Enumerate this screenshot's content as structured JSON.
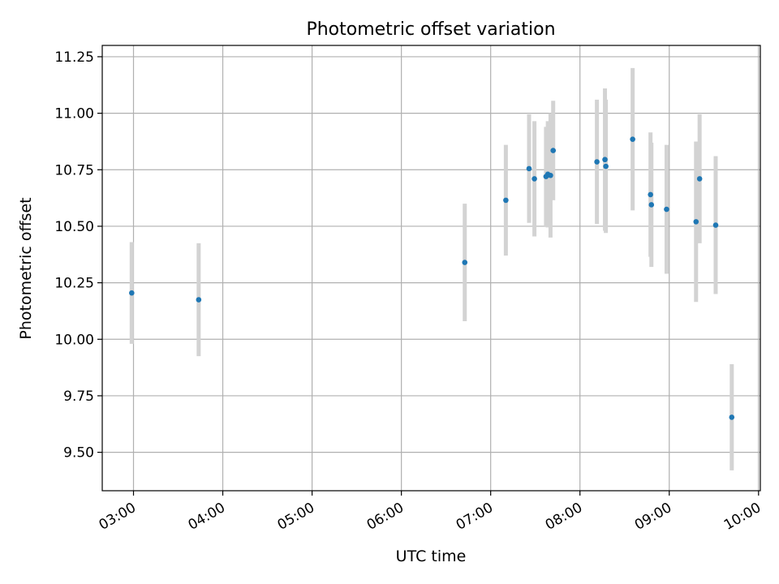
{
  "chart_data": {
    "type": "scatter",
    "title": "Photometric offset variation",
    "xlabel": "UTC time",
    "ylabel": "Photometric offset",
    "x_unit": "hours UTC",
    "xlim": [
      2.65,
      10.02
    ],
    "ylim": [
      9.33,
      11.3
    ],
    "x_ticks": [
      3,
      4,
      5,
      6,
      7,
      8,
      9,
      10
    ],
    "x_tick_labels": [
      "03:00",
      "04:00",
      "05:00",
      "06:00",
      "07:00",
      "08:00",
      "09:00",
      "10:00"
    ],
    "y_ticks": [
      9.5,
      9.75,
      10.0,
      10.25,
      10.5,
      10.75,
      11.0,
      11.25
    ],
    "y_tick_labels": [
      "9.50",
      "9.75",
      "10.00",
      "10.25",
      "10.50",
      "10.75",
      "11.00",
      "11.25"
    ],
    "grid": true,
    "legend": "none",
    "point_color": "#1f77b4",
    "errorbar_color": "#d3d3d3",
    "points": [
      {
        "x": 2.98,
        "y": 10.205,
        "err": 0.225
      },
      {
        "x": 3.73,
        "y": 10.175,
        "err": 0.25
      },
      {
        "x": 6.71,
        "y": 10.34,
        "err": 0.26
      },
      {
        "x": 7.17,
        "y": 10.615,
        "err": 0.245
      },
      {
        "x": 7.43,
        "y": 10.755,
        "err": 0.24
      },
      {
        "x": 7.49,
        "y": 10.71,
        "err": 0.255
      },
      {
        "x": 7.62,
        "y": 10.72,
        "err": 0.22
      },
      {
        "x": 7.64,
        "y": 10.73,
        "err": 0.235
      },
      {
        "x": 7.67,
        "y": 10.725,
        "err": 0.275
      },
      {
        "x": 7.7,
        "y": 10.835,
        "err": 0.22
      },
      {
        "x": 8.19,
        "y": 10.785,
        "err": 0.275
      },
      {
        "x": 8.28,
        "y": 10.795,
        "err": 0.315
      },
      {
        "x": 8.29,
        "y": 10.765,
        "err": 0.295
      },
      {
        "x": 8.59,
        "y": 10.885,
        "err": 0.315
      },
      {
        "x": 8.79,
        "y": 10.64,
        "err": 0.275
      },
      {
        "x": 8.8,
        "y": 10.595,
        "err": 0.275
      },
      {
        "x": 8.97,
        "y": 10.575,
        "err": 0.285
      },
      {
        "x": 9.3,
        "y": 10.52,
        "err": 0.355
      },
      {
        "x": 9.34,
        "y": 10.71,
        "err": 0.285
      },
      {
        "x": 9.52,
        "y": 10.505,
        "err": 0.305
      },
      {
        "x": 9.7,
        "y": 9.655,
        "err": 0.235
      }
    ]
  }
}
